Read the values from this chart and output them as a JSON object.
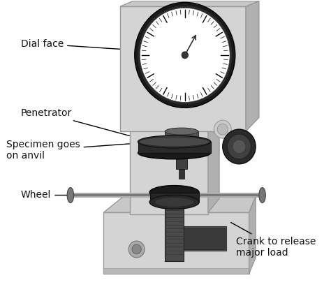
{
  "bg_color": "#ffffff",
  "text_color": "#111111",
  "machine_front": "#d4d4d4",
  "machine_side": "#b0b0b0",
  "machine_top": "#c8c8c8",
  "dark_metal": "#2a2a2a",
  "mid_metal": "#666666",
  "light_metal": "#aaaaaa",
  "labels": {
    "dial_face": "Dial face",
    "penetrator": "Penetrator",
    "specimen": "Specimen goes\non anvil",
    "wheel": "Wheel",
    "crank": "Crank to release\nmajor load"
  }
}
